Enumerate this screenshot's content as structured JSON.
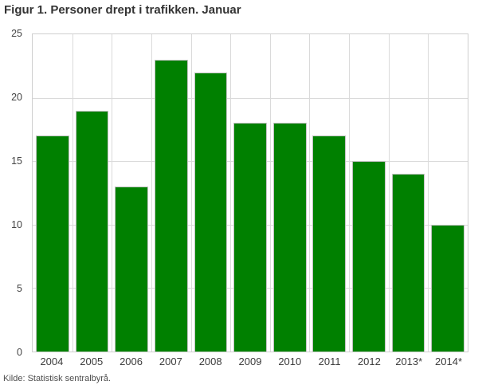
{
  "title": "Figur 1. Personer drept i trafikken. Januar",
  "source": "Kilde: Statistisk sentralbyrå.",
  "chart_data": {
    "type": "bar",
    "title": "Figur 1. Personer drept i trafikken. Januar",
    "categories": [
      "2004",
      "2005",
      "2006",
      "2007",
      "2008",
      "2009",
      "2010",
      "2011",
      "2012",
      "2013*",
      "2014*"
    ],
    "values": [
      17,
      19,
      13,
      23,
      22,
      18,
      18,
      17,
      15,
      14,
      10
    ],
    "xlabel": "",
    "ylabel": "",
    "ylim": [
      0,
      25
    ],
    "yticks": [
      0,
      5,
      10,
      15,
      20,
      25
    ],
    "grid": true,
    "legend": "none",
    "source": "Kilde: Statistisk sentralbyrå.",
    "colors": {
      "bar": "#008000",
      "bar_border": "#c2c2c2",
      "gridline": "#dadada",
      "plot_border": "#cfcfcf",
      "title_text": "#333333",
      "tick_text": "#3c3c3c",
      "source_text": "#4d4d4d",
      "background": "#ffffff"
    }
  }
}
